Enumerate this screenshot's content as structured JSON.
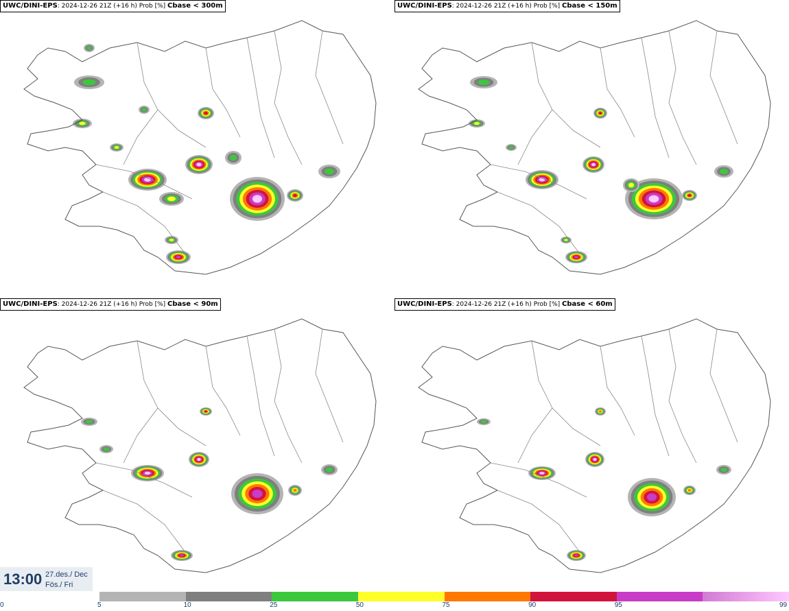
{
  "panels": [
    {
      "model": "UWC/DINI-EPS",
      "info": ": 2024-12-26 21Z (+16 h) Prob [%]",
      "variable": "Cbase < 300m"
    },
    {
      "model": "UWC/DINI-EPS",
      "info": ": 2024-12-26 21Z (+16 h) Prob [%]",
      "variable": "Cbase < 150m"
    },
    {
      "model": "UWC/DINI-EPS",
      "info": ": 2024-12-26 21Z (+16 h) Prob [%]",
      "variable": "Cbase < 90m"
    },
    {
      "model": "UWC/DINI-EPS",
      "info": ": 2024-12-26 21Z (+16 h) Prob [%]",
      "variable": "Cbase < 60m"
    }
  ],
  "valid_time": {
    "time": "13:00",
    "date_line": "27.des./ Dec",
    "day_line": "Fös./ Fri"
  },
  "colorbar": {
    "labels": [
      "0",
      "5",
      "10",
      "25",
      "50",
      "75",
      "90",
      "95",
      "99"
    ],
    "colors": [
      "#b4b4b4",
      "#7f7f7f",
      "#3cc83c",
      "#ffff28",
      "#ff7800",
      "#d2143c",
      "#c83cc8",
      "#ffc8ff"
    ]
  }
}
